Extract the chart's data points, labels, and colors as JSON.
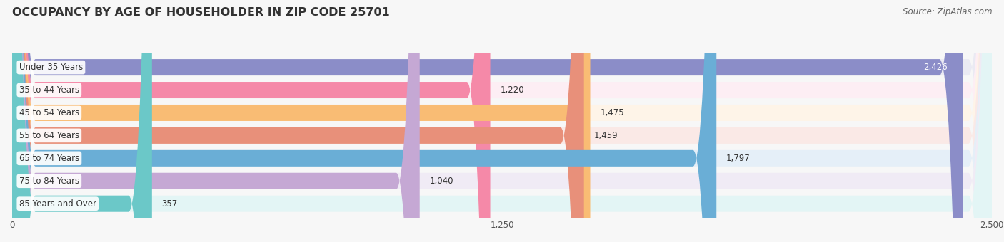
{
  "title": "OCCUPANCY BY AGE OF HOUSEHOLDER IN ZIP CODE 25701",
  "source": "Source: ZipAtlas.com",
  "categories": [
    "Under 35 Years",
    "35 to 44 Years",
    "45 to 54 Years",
    "55 to 64 Years",
    "65 to 74 Years",
    "75 to 84 Years",
    "85 Years and Over"
  ],
  "values": [
    2426,
    1220,
    1475,
    1459,
    1797,
    1040,
    357
  ],
  "bar_colors": [
    "#8B8DC8",
    "#F589A8",
    "#F9BC74",
    "#E8907A",
    "#6AAED6",
    "#C5A8D4",
    "#6BC8C8"
  ],
  "bar_bg_colors": [
    "#EAEAF3",
    "#FDEEF4",
    "#FEF4E8",
    "#FAE9E6",
    "#E5EFF8",
    "#F0EBF5",
    "#E3F5F5"
  ],
  "xlim": [
    0,
    2500
  ],
  "xticks": [
    0,
    1250,
    2500
  ],
  "background_color": "#F7F7F7",
  "title_fontsize": 11.5,
  "label_fontsize": 8.5,
  "value_fontsize": 8.5,
  "source_fontsize": 8.5
}
